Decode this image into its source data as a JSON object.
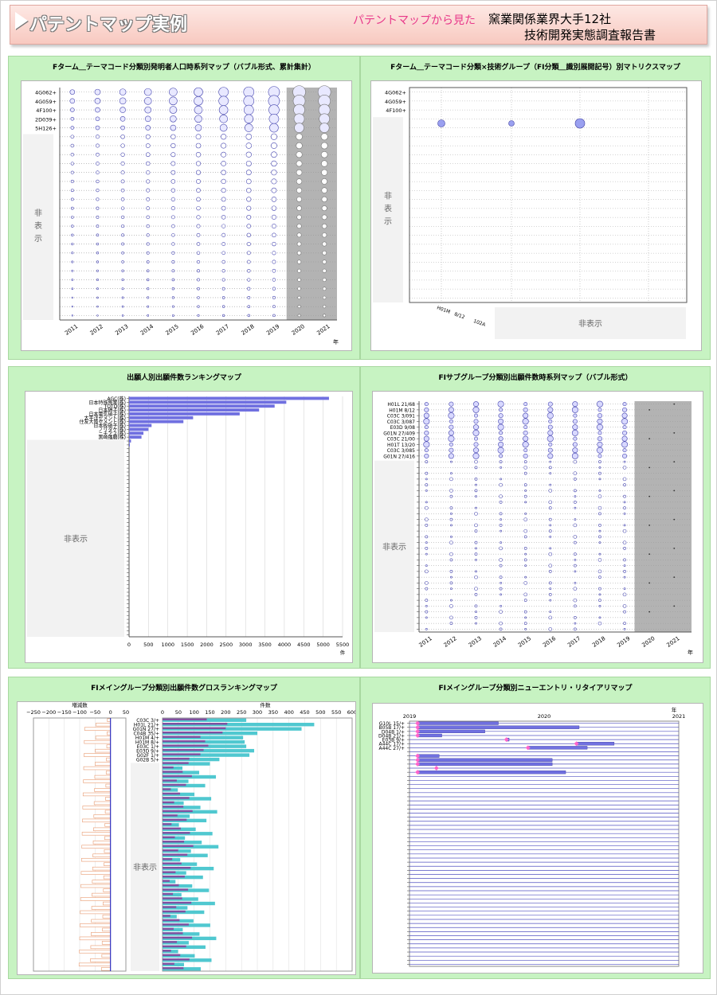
{
  "header": {
    "title": "パテントマップ実例",
    "subtitle": "パテントマップから見た",
    "right_line1": "窯業関係業界大手12社",
    "right_line2": "技術開発実態調査報告書"
  },
  "hidden_label": "非表示",
  "colors": {
    "panel_bg": "#c7f3c2",
    "bubble": "#6e6ee0",
    "bar": "#7070e0",
    "bar2": "#50c8d0",
    "bar3": "#e89a70",
    "marker": "#ff66cc"
  },
  "chart_data": [
    {
      "id": "p1",
      "type": "scatter",
      "title": "Fターム＿テーマコード分類別発明者人口時系列マップ（バブル形式、累計集計）",
      "x": [
        "2011",
        "2012",
        "2013",
        "2014",
        "2015",
        "2016",
        "2017",
        "2018",
        "2019",
        "2020",
        "2021"
      ],
      "x_unit": "年",
      "y_visible": [
        "4G062+",
        "4G059+",
        "4F100+",
        "2D039+",
        "5H126+"
      ],
      "rows": 26,
      "sizes_first_rows": [
        [
          3,
          3.5,
          4,
          4.5,
          5,
          5.5,
          6,
          6.5,
          7,
          8,
          8
        ],
        [
          3,
          3.5,
          4,
          4.5,
          5,
          5.5,
          6,
          6.5,
          7,
          7.5,
          7.5
        ],
        [
          2.5,
          3,
          3.5,
          4,
          4.5,
          5,
          5.5,
          6,
          6.5,
          7,
          7
        ],
        [
          2,
          2.5,
          3,
          3.5,
          4,
          4.5,
          5,
          5.5,
          6,
          6.5,
          6.5
        ],
        [
          2,
          2.5,
          2.5,
          3,
          3.5,
          4,
          4.5,
          5,
          5.5,
          6,
          6
        ]
      ],
      "shaded_x_from": "2020",
      "hidden_label": "非表示"
    },
    {
      "id": "p2",
      "type": "scatter",
      "title": "Fターム＿テーマコード分類×技術グループ（FI分類＿識別展開記号）別マトリクスマップ",
      "y_visible": [
        "4G062+",
        "4G059+",
        "4F100+"
      ],
      "x_visible": [
        "H01M　8/12　　102A"
      ],
      "rows": 24,
      "bubbles": [
        {
          "col": 1,
          "row": 4,
          "r": 4.5
        },
        {
          "col": 2,
          "row": 4,
          "r": 3.5
        },
        {
          "col": 3,
          "row": 4,
          "r": 6
        }
      ],
      "hidden_label": "非表示"
    },
    {
      "id": "p3",
      "type": "bar",
      "title": "出願人別出願件数ランキングマップ",
      "categories": [
        "AGC(株)",
        "日本特殊陶業(株)",
        "TOTO(株)",
        "日本碍子(株)",
        "日本電気硝子(株)",
        "太平洋セメント(株)",
        "住友大阪セメント(株)",
        "日本板硝子(株)",
        "ノリタケ(株)",
        "ニチアス(株)",
        "黒崎播磨(株)"
      ],
      "values": [
        5150,
        4050,
        3750,
        3350,
        2850,
        1650,
        1400,
        580,
        500,
        370,
        320
      ],
      "tail_values": [
        50,
        20
      ],
      "xlim": [
        0,
        5500
      ],
      "xticks": [
        "0",
        "500",
        "1000",
        "1500",
        "2000",
        "2500",
        "3000",
        "3500",
        "4000",
        "4500",
        "5000",
        "5500"
      ],
      "x_unit": "件",
      "hidden_label": "非表示"
    },
    {
      "id": "p4",
      "type": "scatter",
      "title": "FIサブグループ分類別出願件数時系列マップ（バブル形式）",
      "x": [
        "2011",
        "2012",
        "2013",
        "2014",
        "2015",
        "2016",
        "2017",
        "2018",
        "2019",
        "2020",
        "2021"
      ],
      "x_unit": "年",
      "y_visible": [
        "H01L 21/68",
        "H01M 8/12",
        "C03C 3/091",
        "C03C 3/087",
        "E03D 9/08",
        "G01N 27/409",
        "C03C 21/00",
        "H01T 13/20",
        "C03C 3/085",
        "G01N 27/416"
      ],
      "rows": 40,
      "shaded_x_from": "2020",
      "hidden_label": "非表示"
    },
    {
      "id": "p5",
      "type": "bar",
      "title": "FIメイングループ分類別出願件数グロスランキングマップ",
      "left_title": "増減数",
      "left_ticks": [
        "−250",
        "−200",
        "−150",
        "−100",
        "−50",
        "0",
        "50"
      ],
      "right_title": "件数",
      "right_ticks": [
        "0",
        "50",
        "100",
        "150",
        "200",
        "250",
        "300",
        "350",
        "400",
        "450",
        "500",
        "550",
        "600"
      ],
      "categories": [
        "C03C 3/+",
        "H01L 21/+",
        "G01N 27/+",
        "C04B 35/+",
        "H01M 4/+",
        "H01M 8/+",
        "E03C 1/+",
        "E03D 9/+",
        "G02F 1/+",
        "G02B 5/+"
      ],
      "values_a": [
        140,
        205,
        200,
        190,
        120,
        135,
        145,
        130,
        120,
        85
      ],
      "values_b": [
        265,
        480,
        440,
        300,
        255,
        260,
        265,
        290,
        275,
        180
      ],
      "hidden_label": "非表示"
    },
    {
      "id": "p6",
      "type": "bar",
      "title": "FIメイングループ分類別ニューエントリ・リタイアリマップ",
      "x_ticks": [
        "2019",
        "2020",
        "2021"
      ],
      "x_unit": "年",
      "categories": [
        "G10L 15/+",
        "B05B 17/+",
        "D04B 1/+",
        "D04B 21/+",
        "E03B 9/+",
        "A44C 17/+",
        "A44C 27/+"
      ],
      "rows": 60,
      "hidden_label": "非表示"
    }
  ]
}
